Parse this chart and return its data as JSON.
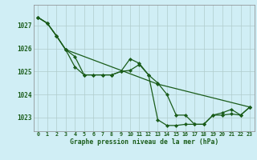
{
  "background_color": "#d0eef5",
  "grid_color": "#b0cccc",
  "line_color": "#1a5c1a",
  "marker_color": "#1a5c1a",
  "xlabel": "Graphe pression niveau de la mer (hPa)",
  "xlim": [
    -0.5,
    23.5
  ],
  "ylim": [
    1022.4,
    1027.9
  ],
  "yticks": [
    1023,
    1024,
    1025,
    1026,
    1027
  ],
  "xticks": [
    0,
    1,
    2,
    3,
    4,
    5,
    6,
    7,
    8,
    9,
    10,
    11,
    12,
    13,
    14,
    15,
    16,
    17,
    18,
    19,
    20,
    21,
    22,
    23
  ],
  "series1_x": [
    0,
    1,
    2,
    3,
    13,
    23
  ],
  "series1_y": [
    1027.35,
    1027.1,
    1026.55,
    1025.95,
    1024.45,
    1023.45
  ],
  "series2_x": [
    0,
    1,
    2,
    3,
    4,
    5,
    6,
    7,
    8,
    9,
    10,
    11,
    12,
    13,
    14,
    15,
    16,
    17,
    18,
    19,
    20,
    21,
    22,
    23
  ],
  "series2_y": [
    1027.35,
    1027.1,
    1026.55,
    1025.95,
    1025.65,
    1024.85,
    1024.85,
    1024.85,
    1024.85,
    1025.0,
    1025.55,
    1025.35,
    1024.85,
    1022.9,
    1022.65,
    1022.65,
    1022.7,
    1022.7,
    1022.7,
    1023.1,
    1023.2,
    1023.35,
    1023.1,
    1023.45
  ],
  "series3_x": [
    0,
    1,
    2,
    3,
    4,
    5,
    6,
    7,
    8,
    9,
    10,
    11,
    12,
    13,
    14,
    15,
    16,
    17,
    18,
    19,
    20,
    21,
    22,
    23
  ],
  "series3_y": [
    1027.35,
    1027.1,
    1026.55,
    1025.95,
    1025.2,
    1024.85,
    1024.85,
    1024.85,
    1024.85,
    1025.0,
    1025.05,
    1025.3,
    1024.85,
    1024.5,
    1024.0,
    1023.1,
    1023.1,
    1022.7,
    1022.7,
    1023.1,
    1023.1,
    1023.15,
    1023.1,
    1023.45
  ]
}
